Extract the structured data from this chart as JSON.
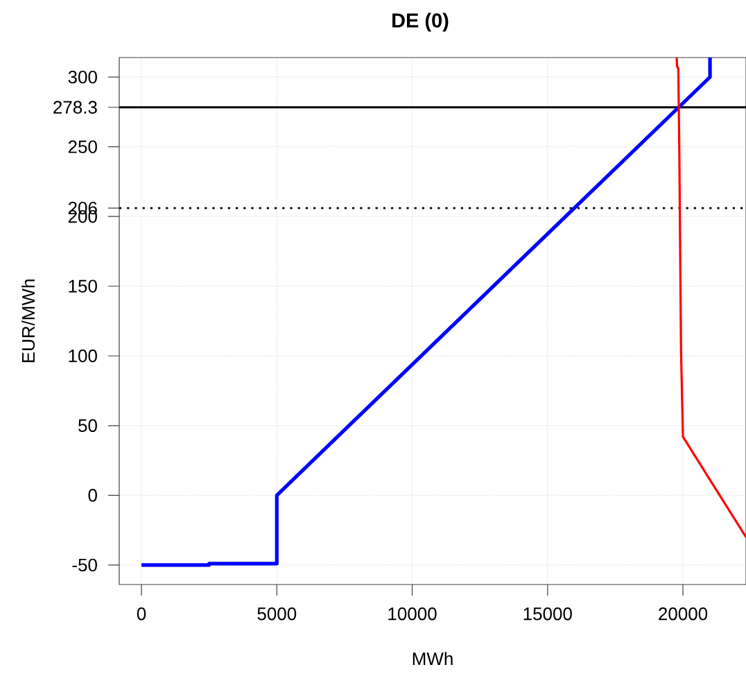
{
  "chart_data": {
    "type": "line",
    "title": "DE (0)",
    "xlabel": "MWh",
    "ylabel": "EUR/MWh",
    "series": [
      {
        "color": "#0000ff",
        "x": [
          0,
          2500,
          2500,
          5000,
          5000,
          21000,
          21000
        ],
        "values": [
          -50,
          -50,
          -49,
          -49,
          0,
          300,
          314
        ]
      },
      {
        "color": "#ff0000",
        "x": [
          19770,
          19780,
          19830,
          19870,
          19900,
          19930,
          20000,
          22330
        ],
        "values": [
          314,
          308,
          306,
          241,
          171,
          104,
          42,
          -30
        ]
      }
    ],
    "xlim": [
      -820,
      22330
    ],
    "ylim": [
      -64,
      314
    ],
    "xticks": [
      0,
      5000,
      10000,
      15000,
      20000
    ],
    "yticks": [
      -50,
      0,
      50,
      100,
      150,
      200,
      250,
      300
    ],
    "ref_lines": [
      {
        "axis": "y",
        "value": 278.3,
        "label": "278.3",
        "color": "#000000",
        "line_style": "solid"
      },
      {
        "axis": "y",
        "value": 206,
        "label": "206",
        "color": "#000000",
        "line_style": "dotted"
      }
    ],
    "grid": true,
    "line_style": "solid"
  }
}
